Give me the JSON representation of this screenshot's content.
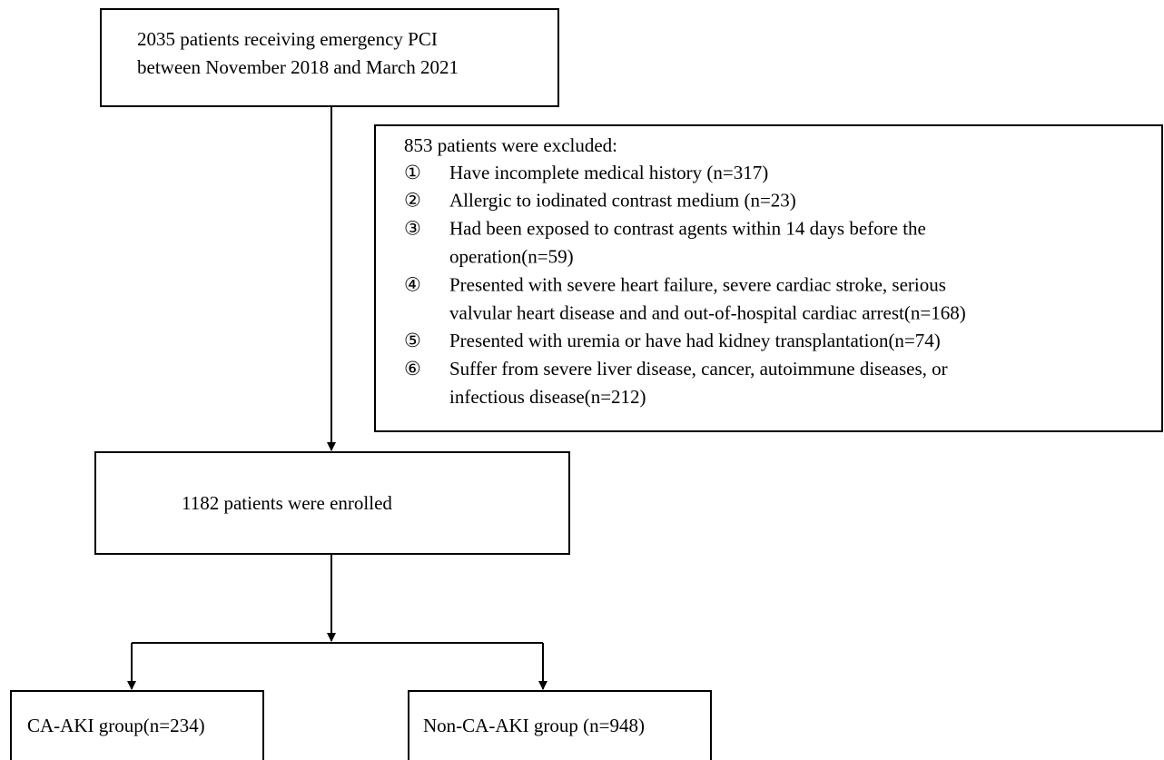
{
  "nodes": [
    {
      "lines": [
        "2035 patients receiving emergency PCI",
        "between November 2018 and March 2021"
      ]
    },
    {
      "title": "853 patients were excluded:",
      "items": [
        {
          "marker": "①",
          "lines": [
            "Have incomplete medical history (n=317)"
          ]
        },
        {
          "marker": "②",
          "lines": [
            "Allergic to iodinated contrast medium (n=23)"
          ]
        },
        {
          "marker": "③",
          "lines": [
            "Had been exposed to contrast agents within 14 days before the",
            "operation(n=59)"
          ]
        },
        {
          "marker": "④",
          "lines": [
            "Presented with severe heart failure, severe cardiac stroke, serious",
            "valvular heart disease and and out-of-hospital cardiac arrest(n=168)"
          ]
        },
        {
          "marker": "⑤",
          "lines": [
            "Presented with uremia or have had kidney transplantation(n=74)"
          ]
        },
        {
          "marker": "⑥",
          "lines": [
            "Suffer from severe liver disease, cancer, autoimmune diseases, or",
            "infectious disease(n=212)"
          ]
        }
      ]
    },
    {
      "lines": [
        "1182 patients were enrolled"
      ]
    },
    {
      "lines": [
        "CA-AKI group(n=234)"
      ]
    },
    {
      "lines": [
        "Non-CA-AKI group (n=948)"
      ]
    }
  ]
}
